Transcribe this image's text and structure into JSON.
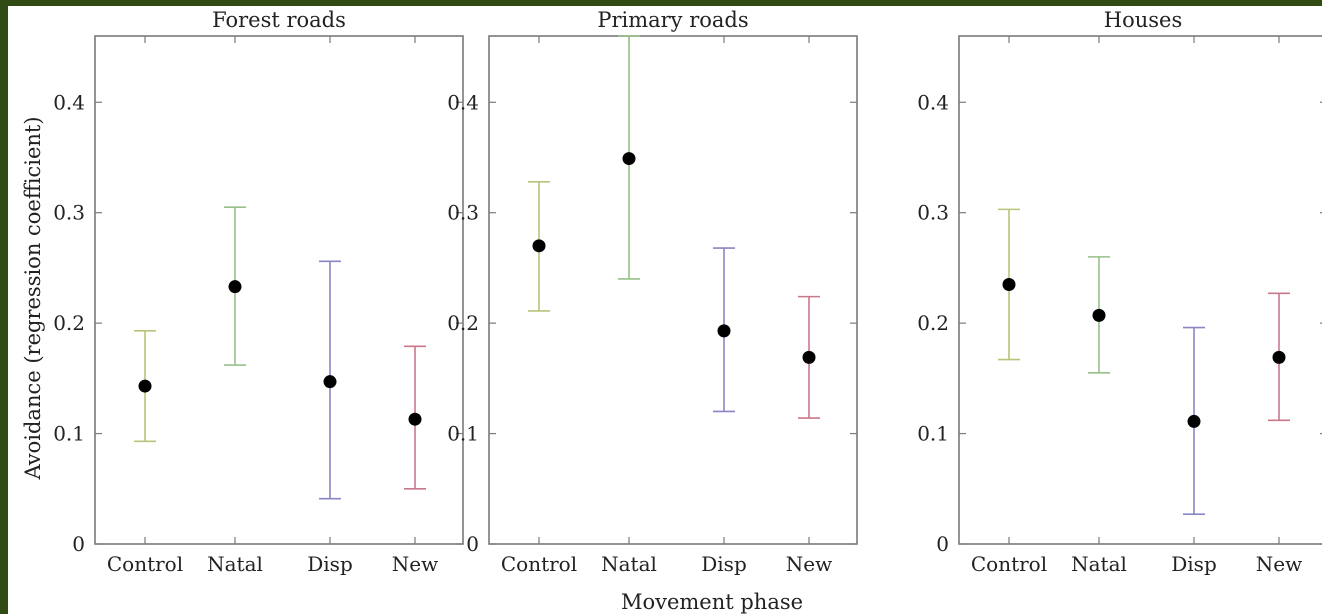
{
  "chart_data": {
    "type": "scatter",
    "ylabel": "Avoidance (regression coefficient)",
    "xlabel": "Movement phase",
    "ylim": [
      0,
      0.46
    ],
    "yticks": [
      0,
      0.1,
      0.2,
      0.3,
      0.4
    ],
    "ytick_labels": [
      "0",
      "0.1",
      "0.2",
      "0.3",
      "0.4"
    ],
    "categories": [
      "Control",
      "Natal",
      "Disp",
      "New"
    ],
    "category_colors": [
      "#b7c47a",
      "#97c08a",
      "#8a86c4",
      "#c8788a"
    ],
    "grid": false,
    "panels": [
      {
        "title": "Forest roads",
        "values": [
          0.143,
          0.233,
          0.147,
          0.113
        ],
        "lower": [
          0.093,
          0.162,
          0.041,
          0.05
        ],
        "upper": [
          0.193,
          0.305,
          0.256,
          0.179
        ]
      },
      {
        "title": "Primary roads",
        "values": [
          0.27,
          0.349,
          0.193,
          0.169
        ],
        "lower": [
          0.211,
          0.24,
          0.12,
          0.114
        ],
        "upper": [
          0.328,
          0.46,
          0.268,
          0.224
        ]
      },
      {
        "title": "Houses",
        "values": [
          0.235,
          0.207,
          0.111,
          0.169
        ],
        "lower": [
          0.167,
          0.155,
          0.027,
          0.112
        ],
        "upper": [
          0.303,
          0.26,
          0.196,
          0.227
        ]
      }
    ]
  }
}
